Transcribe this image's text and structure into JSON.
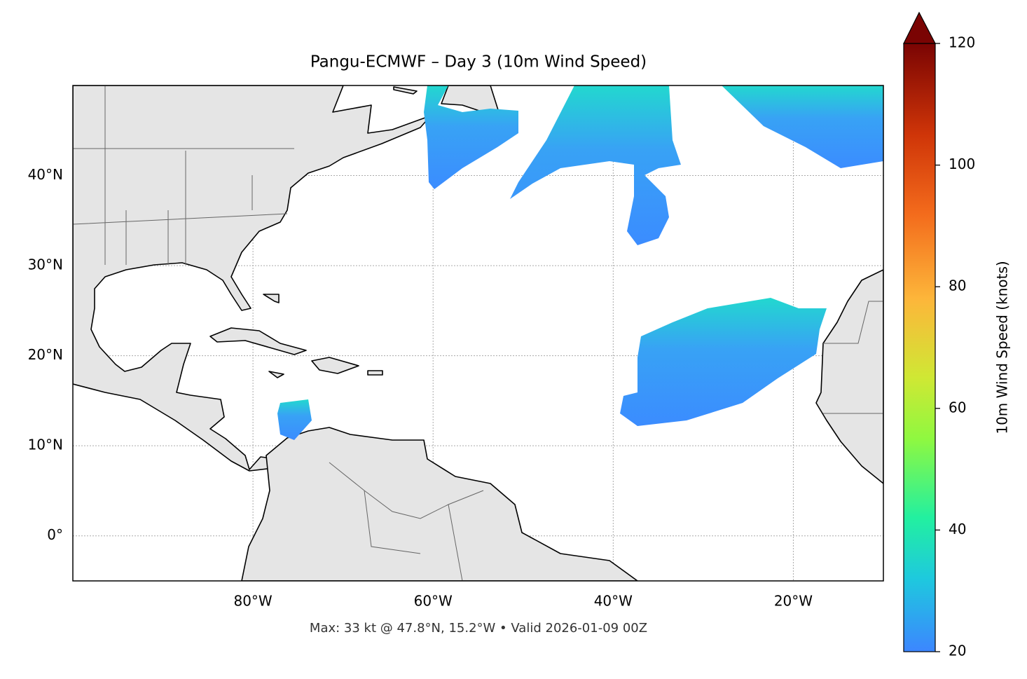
{
  "chart_data": {
    "type": "map",
    "title": "Pangu-ECMWF – Day 3 (10m Wind Speed)",
    "footer": "Max: 33 kt @ 47.8°N, 15.2°W • Valid 2026-01-09 00Z",
    "xlim": [
      -100,
      -10
    ],
    "ylim": [
      -5,
      50
    ],
    "xticks": [
      {
        "value": -80,
        "label": "80°W"
      },
      {
        "value": -60,
        "label": "60°W"
      },
      {
        "value": -40,
        "label": "40°W"
      },
      {
        "value": -20,
        "label": "20°W"
      }
    ],
    "yticks": [
      {
        "value": 0,
        "label": "0°"
      },
      {
        "value": 10,
        "label": "10°N"
      },
      {
        "value": 20,
        "label": "20°N"
      },
      {
        "value": 30,
        "label": "30°N"
      },
      {
        "value": 40,
        "label": "40°N"
      }
    ],
    "grid": true,
    "colorbar": {
      "label": "10m Wind Speed (knots)",
      "lim": [
        20,
        120
      ],
      "ticks": [
        20,
        40,
        60,
        80,
        100,
        120
      ]
    }
  }
}
